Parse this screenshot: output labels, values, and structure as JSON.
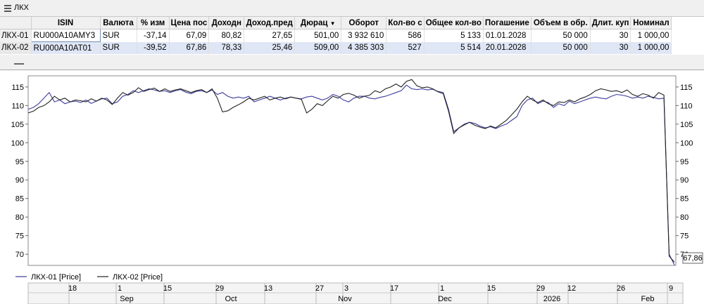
{
  "window": {
    "title": "ЛКХ"
  },
  "table": {
    "columns": [
      "",
      "ISIN",
      "Валюта",
      "% изм",
      "Цена пос",
      "Доходн",
      "Доход.пред",
      "Дюрац",
      "Оборот",
      "Кол-во с",
      "Общее кол-во",
      "Погашение",
      "Объем в обр.",
      "Длит. куп",
      "Номинал"
    ],
    "rows": [
      [
        "ЛКХ-01",
        "RU000A10AMY3",
        "SUR",
        "-37,14",
        "67,09",
        "80,82",
        "27,65",
        "501,00",
        "3 932 610",
        "586",
        "5 133",
        "01.01.2028",
        "50 000",
        "30",
        "1 000,00"
      ],
      [
        "ЛКХ-02",
        "RU000A10AT01",
        "SUR",
        "-39,52",
        "67,86",
        "78,33",
        "25,46",
        "509,00",
        "4 385 303",
        "527",
        "5 514",
        "20.01.2028",
        "50 000",
        "30",
        "1 000,00"
      ]
    ]
  },
  "chart_data": {
    "type": "line",
    "ylim": [
      67,
      118
    ],
    "y_ticks": [
      70,
      75,
      80,
      85,
      90,
      95,
      100,
      105,
      110,
      115
    ],
    "price_badge": "67,86",
    "legend": [
      {
        "name": "ЛКХ-01 [Price]",
        "color": "#3c3ca0"
      },
      {
        "name": "ЛКХ-02 [Price]",
        "color": "#222222"
      }
    ],
    "x_day_ticks": [
      "18",
      "1",
      "15",
      "29",
      "13",
      "27",
      "3",
      "17",
      "1",
      "15",
      "29",
      "12",
      "26",
      "9"
    ],
    "x_month_labels": [
      "Sep",
      "Oct",
      "Nov",
      "Dec",
      "2026",
      "Feb"
    ],
    "series": [
      {
        "name": "ЛКХ-01 [Price]",
        "color": "#3c3ca0",
        "values": [
          109,
          109.5,
          110.5,
          112,
          113.5,
          111,
          111.5,
          110.5,
          111,
          111.2,
          110.8,
          111.5,
          110.6,
          111.2,
          111.8,
          112,
          110.5,
          111,
          112.5,
          113,
          114,
          113.5,
          114,
          114.5,
          114.2,
          113.8,
          114,
          113.5,
          114,
          114.3,
          113.6,
          113.2,
          113.8,
          114,
          113.5,
          114.2,
          113,
          113.5,
          112.5,
          112,
          112.3,
          112,
          112.5,
          111,
          111.5,
          112,
          112.5,
          112,
          111.5,
          112,
          112.3,
          112,
          111.8,
          112.3,
          112.5,
          112,
          111.5,
          112,
          113,
          112.5,
          111.5,
          111,
          112,
          112.5,
          112.5,
          112,
          111.8,
          112.2,
          112.5,
          113,
          113.5,
          114,
          115.5,
          114.5,
          114.3,
          114.5,
          114.2,
          114.4,
          113.8,
          113.5,
          109,
          103,
          104,
          105,
          105.5,
          105.2,
          104.5,
          104,
          104.3,
          103.8,
          104.5,
          105,
          106,
          107,
          110,
          111.5,
          112,
          110.5,
          111.2,
          110.8,
          109.5,
          110.5,
          110,
          111.2,
          110.5,
          111,
          111.5,
          112,
          112.3,
          112,
          111.8,
          112.5,
          113,
          112.8,
          112.5,
          112,
          112.3,
          112,
          112.5,
          112.2,
          111.8,
          112,
          70,
          67.1
        ]
      },
      {
        "name": "ЛКХ-02 [Price]",
        "color": "#222222",
        "values": [
          108,
          108.5,
          109.5,
          110,
          111,
          112.5,
          111.5,
          112,
          111,
          111.5,
          111.3,
          111,
          111.8,
          111.2,
          112,
          111.5,
          110.3,
          112,
          113.5,
          112.8,
          113.5,
          114.8,
          113.8,
          114.3,
          114.7,
          113.8,
          114.5,
          113.8,
          114.2,
          114.5,
          114,
          113.5,
          114,
          114.3,
          113.5,
          114.5,
          112,
          108.3,
          108.6,
          109.5,
          110.2,
          111,
          112,
          111.5,
          112,
          112.5,
          111.5,
          112,
          112.3,
          111.8,
          112.3,
          112,
          111.7,
          108,
          109,
          110.5,
          110,
          111.3,
          112.5,
          112,
          113,
          113.3,
          112.8,
          112,
          112.5,
          112.8,
          114,
          113.5,
          114.5,
          115,
          115.8,
          115,
          116.5,
          117,
          115.3,
          114.8,
          115,
          114.5,
          113.7,
          113.2,
          108.5,
          102.5,
          104,
          104.8,
          105.5,
          104.7,
          104.2,
          103.8,
          104.5,
          104,
          105,
          106,
          107.5,
          109,
          111,
          112.5,
          111.5,
          110.8,
          111.5,
          110.5,
          110,
          111,
          110.8,
          111.5,
          111,
          111.8,
          112.3,
          113,
          114,
          114.5,
          114.2,
          113.8,
          114,
          113.5,
          114.2,
          113,
          112.5,
          113.2,
          112.8,
          112,
          113.5,
          112.8,
          69.5,
          67.86
        ]
      }
    ]
  }
}
